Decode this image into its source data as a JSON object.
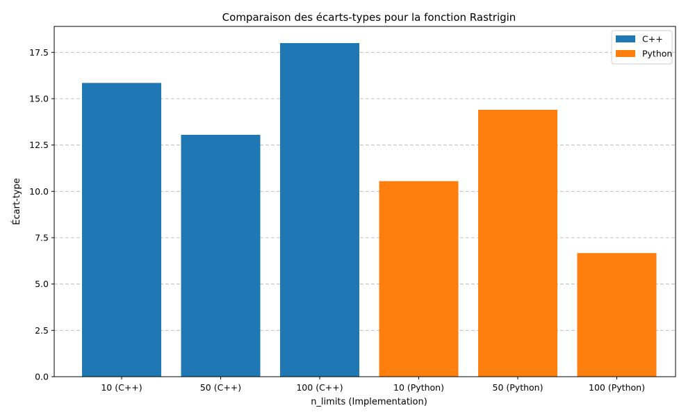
{
  "chart_data": {
    "type": "bar",
    "title": "Comparaison des écarts-types pour la fonction Rastrigin",
    "xlabel": "n_limits (Implementation)",
    "ylabel": "Écart-type",
    "categories": [
      "10 (C++)",
      "50 (C++)",
      "100 (C++)",
      "10 (Python)",
      "50 (Python)",
      "100 (Python)"
    ],
    "series": [
      {
        "name": "C++",
        "color": "#1f77b4",
        "values": [
          15.85,
          13.05,
          18.0,
          null,
          null,
          null
        ]
      },
      {
        "name": "Python",
        "color": "#ff7f0e",
        "values": [
          null,
          null,
          null,
          10.55,
          14.4,
          6.67
        ]
      }
    ],
    "ylim": [
      0,
      18.9
    ],
    "yticks": [
      0.0,
      2.5,
      5.0,
      7.5,
      10.0,
      12.5,
      15.0,
      17.5
    ],
    "ytick_labels": [
      "0.0",
      "2.5",
      "5.0",
      "7.5",
      "10.0",
      "12.5",
      "15.0",
      "17.5"
    ],
    "grid": "y-dashed",
    "legend": "top-right"
  }
}
